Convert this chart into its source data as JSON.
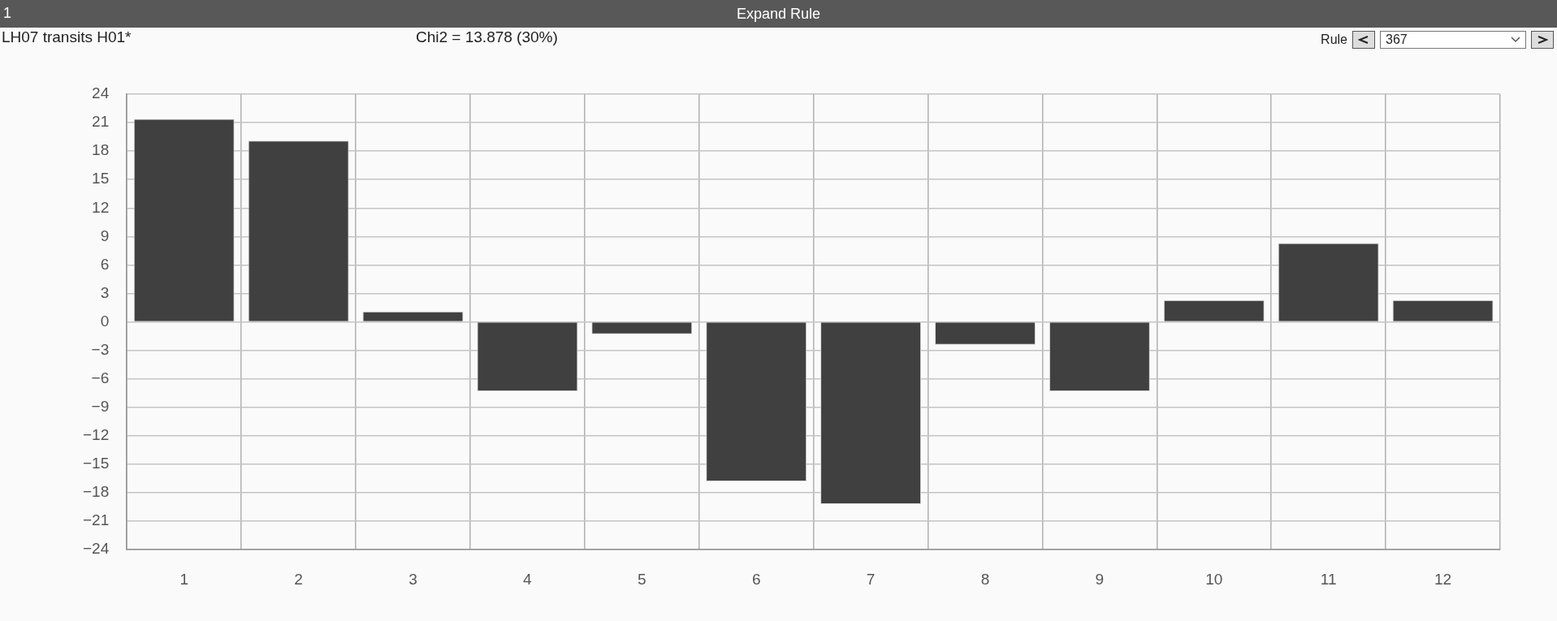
{
  "chart_data": {
    "type": "bar",
    "title": "Expand Rule",
    "subtitle": "LH07 transits H01*",
    "annotations": [
      "Chi2 = 13.878 (30%)",
      "1",
      "Rule",
      "367"
    ],
    "categories": [
      "1",
      "2",
      "3",
      "4",
      "5",
      "6",
      "7",
      "8",
      "9",
      "10",
      "11",
      "12"
    ],
    "values": [
      21.4,
      19.1,
      1.1,
      -7.3,
      -1.3,
      -16.8,
      -19.2,
      -2.4,
      -7.3,
      2.3,
      8.3,
      2.3
    ],
    "color": "#404040",
    "ylim": [
      -24,
      24
    ],
    "yticks": [
      -24,
      -21,
      -18,
      -15,
      -12,
      -9,
      -6,
      -3,
      0,
      3,
      6,
      9,
      12,
      15,
      18,
      21,
      24
    ],
    "grid": true
  }
}
